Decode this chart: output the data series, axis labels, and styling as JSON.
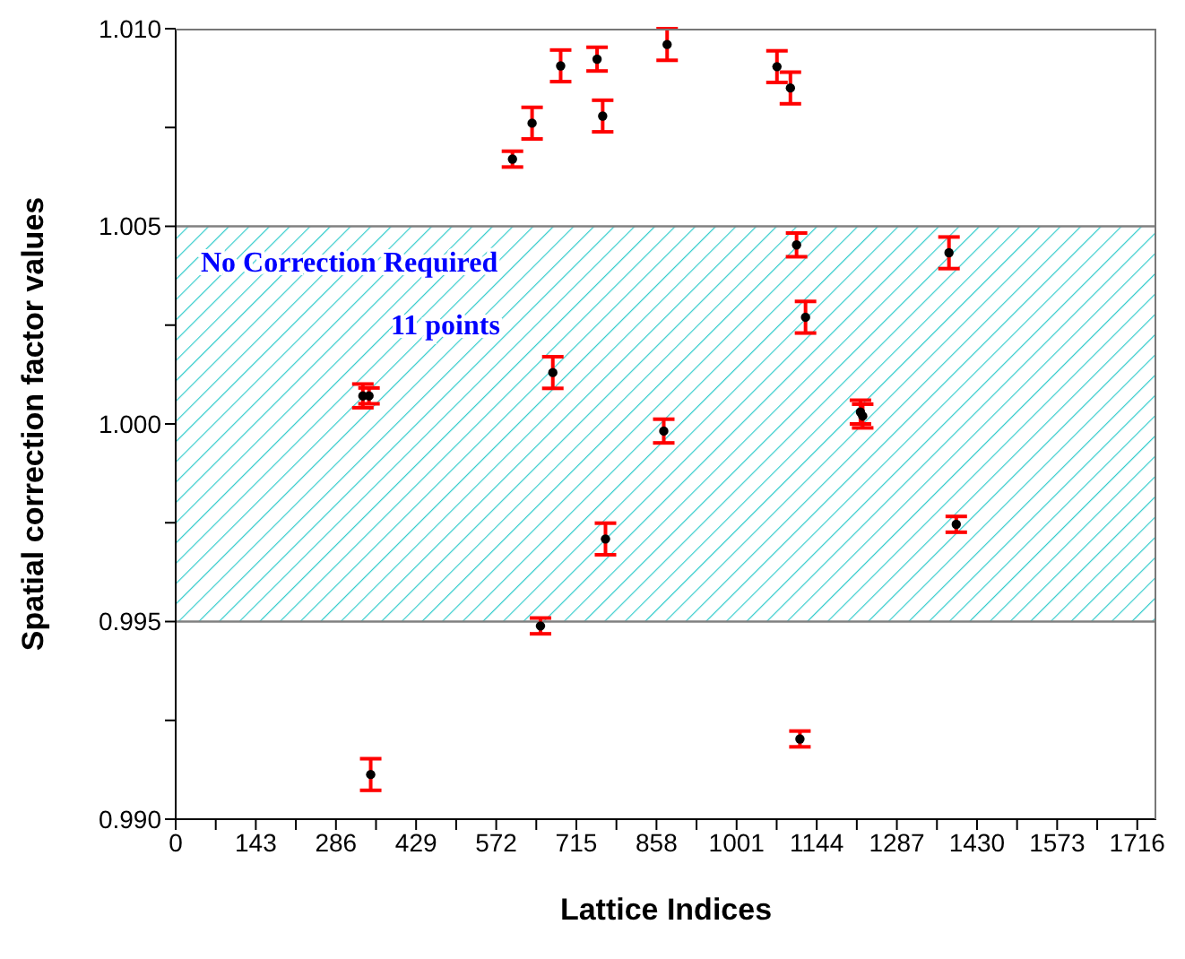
{
  "chart_data": {
    "type": "scatter",
    "xlabel": "Lattice Indices",
    "ylabel": "Spatial correction factor values",
    "x": [
      334,
      345,
      348,
      601,
      636,
      651,
      673,
      687,
      752,
      762,
      767,
      871,
      877,
      1073,
      1097,
      1108,
      1114,
      1124,
      1222,
      1226,
      1380,
      1393
    ],
    "series": [
      {
        "color": "#000000",
        "values": [
          1.00071,
          1.00071,
          0.99113,
          1.0067,
          1.00761,
          0.99489,
          1.0013,
          1.00906,
          1.00923,
          1.00779,
          0.99709,
          0.99982,
          1.0096,
          1.00904,
          1.0085,
          1.00453,
          0.99203,
          1.0027,
          1.0003,
          1.0002,
          1.00433,
          0.99746
        ],
        "errors": [
          0.0003,
          0.0002,
          0.0004,
          0.0002,
          0.0004,
          0.0002,
          0.0004,
          0.0004,
          0.0003,
          0.0004,
          0.0004,
          0.0003,
          0.0004,
          0.0004,
          0.0004,
          0.0003,
          0.0002,
          0.0004,
          0.0003,
          0.0003,
          0.0004,
          0.0002
        ]
      }
    ],
    "xlim": [
      0,
      1750
    ],
    "xticks": [
      0,
      {
        "value": 71.5,
        "label": null
      },
      143,
      {
        "value": 214.5,
        "label": null
      },
      286,
      {
        "value": 357.5,
        "label": null
      },
      429,
      {
        "value": 500.5,
        "label": null
      },
      572,
      {
        "value": 643.5,
        "label": null
      },
      715,
      {
        "value": 786.5,
        "label": null
      },
      858,
      {
        "value": 929.5,
        "label": null
      },
      1001,
      {
        "value": 1072.5,
        "label": null
      },
      1144,
      {
        "value": 1215.5,
        "label": null
      },
      1287,
      {
        "value": 1358.5,
        "label": null
      },
      1430,
      {
        "value": 1501.5,
        "label": null
      },
      1573,
      {
        "value": 1644.5,
        "label": null
      },
      1716
    ],
    "ylim": [
      0.99,
      1.01
    ],
    "yticks": [
      "0.990",
      {
        "value": 0.9925,
        "label": null
      },
      {
        "value": 0.995,
        "label": "0.995"
      },
      {
        "value": 0.9975,
        "label": null
      },
      {
        "value": 1.0,
        "label": "1.000"
      },
      {
        "value": 1.0025,
        "label": null
      },
      {
        "value": 1.005,
        "label": "1.005"
      },
      {
        "value": 1.0075,
        "label": null
      },
      {
        "value": 1.01,
        "label": "1.010"
      }
    ],
    "bands": [
      {
        "axis": "y",
        "from": 0.995,
        "to": 1.005,
        "label": "No Correction Required",
        "color": "#33cccc"
      }
    ],
    "ref_lines": [
      {
        "axis": "y",
        "value": 0.995,
        "color": "#808080"
      },
      {
        "axis": "y",
        "value": 1.005,
        "color": "#808080"
      }
    ],
    "annotations": [
      "11 points"
    ],
    "marker": "circle",
    "grid": false,
    "legend": false
  }
}
